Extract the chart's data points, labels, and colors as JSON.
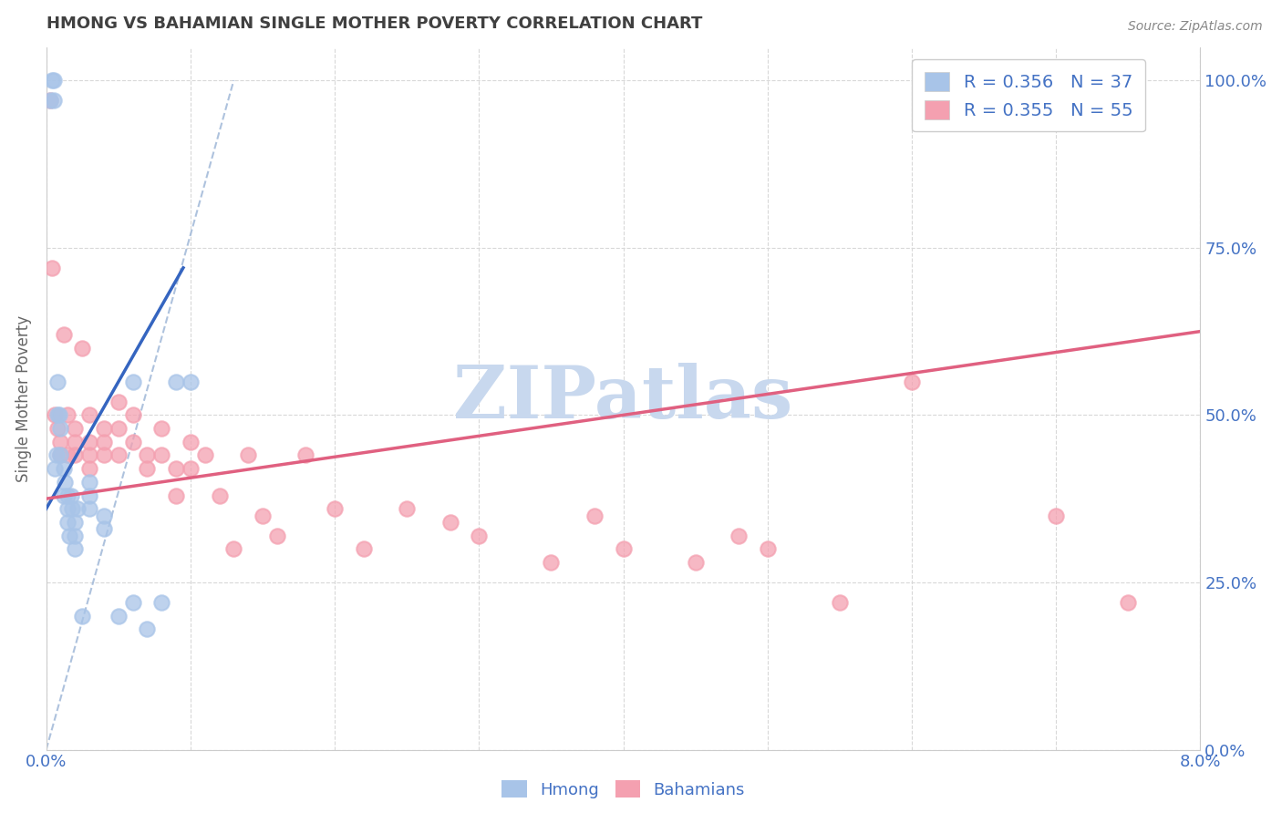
{
  "title": "HMONG VS BAHAMIAN SINGLE MOTHER POVERTY CORRELATION CHART",
  "source": "Source: ZipAtlas.com",
  "ylabel": "Single Mother Poverty",
  "hmong_R": 0.356,
  "hmong_N": 37,
  "bahamian_R": 0.355,
  "bahamian_N": 55,
  "hmong_color": "#a8c4e8",
  "bahamian_color": "#f4a0b0",
  "hmong_line_color": "#3565c0",
  "bahamian_line_color": "#e06080",
  "diag_line_color": "#a0b8d8",
  "watermark_text": "ZIPatlas",
  "watermark_color": "#c8d8ee",
  "background_color": "#ffffff",
  "grid_color": "#d8d8d8",
  "title_color": "#404040",
  "axis_label_color": "#4472c4",
  "legend_text_color": "#4472c4",
  "hmong_x": [
    0.0003,
    0.0004,
    0.0005,
    0.0005,
    0.0006,
    0.0007,
    0.0008,
    0.0008,
    0.0009,
    0.001,
    0.001,
    0.0012,
    0.0012,
    0.0013,
    0.0015,
    0.0015,
    0.0015,
    0.0016,
    0.0017,
    0.0018,
    0.002,
    0.002,
    0.002,
    0.0022,
    0.0025,
    0.003,
    0.003,
    0.003,
    0.004,
    0.004,
    0.005,
    0.006,
    0.006,
    0.007,
    0.008,
    0.009,
    0.01
  ],
  "hmong_y": [
    0.97,
    1.0,
    1.0,
    0.97,
    0.42,
    0.44,
    0.55,
    0.5,
    0.5,
    0.48,
    0.44,
    0.42,
    0.38,
    0.4,
    0.38,
    0.36,
    0.34,
    0.32,
    0.38,
    0.36,
    0.34,
    0.32,
    0.3,
    0.36,
    0.2,
    0.4,
    0.38,
    0.36,
    0.35,
    0.33,
    0.2,
    0.55,
    0.22,
    0.18,
    0.22,
    0.55,
    0.55
  ],
  "bahamian_x": [
    0.0003,
    0.0004,
    0.0006,
    0.0008,
    0.001,
    0.001,
    0.0012,
    0.0015,
    0.0015,
    0.002,
    0.002,
    0.002,
    0.0025,
    0.003,
    0.003,
    0.003,
    0.003,
    0.004,
    0.004,
    0.004,
    0.005,
    0.005,
    0.005,
    0.006,
    0.006,
    0.007,
    0.007,
    0.008,
    0.008,
    0.009,
    0.009,
    0.01,
    0.01,
    0.011,
    0.012,
    0.013,
    0.014,
    0.015,
    0.016,
    0.018,
    0.02,
    0.022,
    0.025,
    0.028,
    0.03,
    0.035,
    0.038,
    0.04,
    0.045,
    0.048,
    0.05,
    0.055,
    0.06,
    0.07,
    0.075
  ],
  "bahamian_y": [
    0.97,
    0.72,
    0.5,
    0.48,
    0.46,
    0.44,
    0.62,
    0.5,
    0.44,
    0.48,
    0.46,
    0.44,
    0.6,
    0.5,
    0.46,
    0.44,
    0.42,
    0.48,
    0.46,
    0.44,
    0.52,
    0.48,
    0.44,
    0.5,
    0.46,
    0.44,
    0.42,
    0.48,
    0.44,
    0.42,
    0.38,
    0.46,
    0.42,
    0.44,
    0.38,
    0.3,
    0.44,
    0.35,
    0.32,
    0.44,
    0.36,
    0.3,
    0.36,
    0.34,
    0.32,
    0.28,
    0.35,
    0.3,
    0.28,
    0.32,
    0.3,
    0.22,
    0.55,
    0.35,
    0.22
  ],
  "hmong_line_x": [
    0.0,
    0.0095
  ],
  "hmong_line_y": [
    0.36,
    0.72
  ],
  "bah_line_x": [
    0.0,
    0.08
  ],
  "bah_line_y": [
    0.375,
    0.625
  ],
  "diag_line_x": [
    0.0,
    0.013
  ],
  "diag_line_y": [
    0.0,
    1.0
  ],
  "xlim": [
    0.0,
    0.08
  ],
  "ylim": [
    0.0,
    1.05
  ],
  "xtick_positions": [
    0.0,
    0.01,
    0.02,
    0.03,
    0.04,
    0.05,
    0.06,
    0.07,
    0.08
  ],
  "ytick_positions": [
    0.0,
    0.25,
    0.5,
    0.75,
    1.0
  ],
  "right_yticklabels": [
    "0.0%",
    "25.0%",
    "50.0%",
    "75.0%",
    "100.0%"
  ]
}
